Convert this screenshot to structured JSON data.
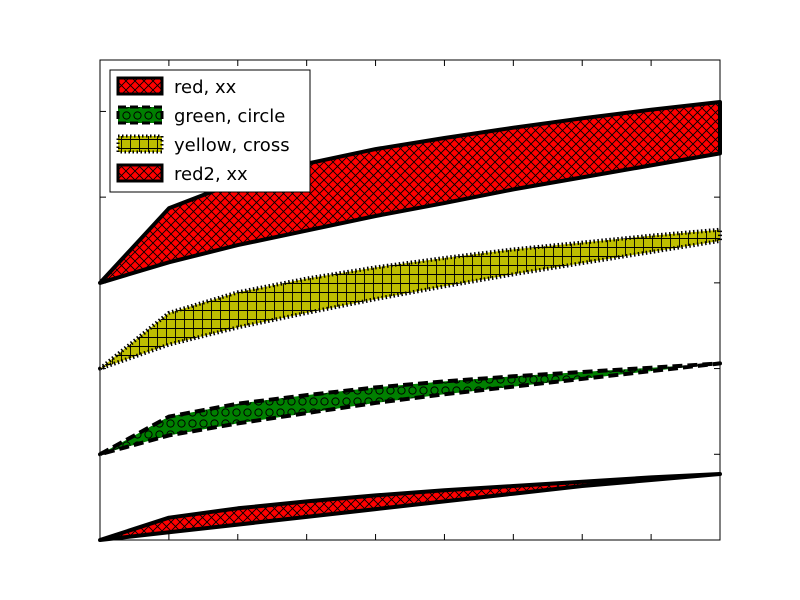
{
  "chart_data": {
    "type": "area",
    "title": "",
    "xlabel": "",
    "ylabel": "",
    "xlim": [
      0,
      9
    ],
    "ylim": [
      0,
      5.6
    ],
    "x": [
      0,
      1,
      2,
      3,
      4,
      5,
      6,
      7,
      8,
      9
    ],
    "grid": false,
    "legend_position": "upper left",
    "series": [
      {
        "name": "red, xx",
        "key": "red_xx",
        "facecolor": "#ff0000",
        "edgecolor": "#000000",
        "hatch": "xx",
        "linestyle": "solid",
        "upper": [
          3.0,
          3.87,
          4.18,
          4.39,
          4.56,
          4.69,
          4.81,
          4.92,
          5.02,
          5.11
        ],
        "lower": [
          3.0,
          3.24,
          3.44,
          3.61,
          3.78,
          3.93,
          4.09,
          4.23,
          4.37,
          4.51
        ]
      },
      {
        "name": "green, circle",
        "key": "green_circle",
        "facecolor": "#008000",
        "edgecolor": "#000000",
        "hatch": "o",
        "linestyle": "dashed",
        "upper": [
          1.0,
          1.44,
          1.59,
          1.69,
          1.78,
          1.85,
          1.91,
          1.96,
          2.01,
          2.06
        ],
        "lower": [
          1.0,
          1.22,
          1.36,
          1.48,
          1.6,
          1.7,
          1.79,
          1.88,
          1.97,
          2.06
        ]
      },
      {
        "name": "yellow, cross",
        "key": "yellow_cross",
        "facecolor": "#bfbf00",
        "edgecolor": "#000000",
        "hatch": "+",
        "linestyle": "dotted",
        "upper": [
          2.0,
          2.65,
          2.89,
          3.05,
          3.18,
          3.29,
          3.39,
          3.47,
          3.55,
          3.62
        ],
        "lower": [
          2.0,
          2.28,
          2.48,
          2.65,
          2.81,
          2.96,
          3.1,
          3.23,
          3.36,
          3.49
        ]
      },
      {
        "name": "red2, xx",
        "key": "red2_xx",
        "facecolor": "#ff0000",
        "edgecolor": "#000000",
        "hatch": "xx",
        "linestyle": "solid",
        "upper": [
          0.0,
          0.26,
          0.37,
          0.45,
          0.52,
          0.58,
          0.63,
          0.68,
          0.73,
          0.77
        ],
        "lower": [
          0.0,
          0.09,
          0.18,
          0.27,
          0.36,
          0.45,
          0.54,
          0.63,
          0.7,
          0.77
        ]
      }
    ]
  }
}
